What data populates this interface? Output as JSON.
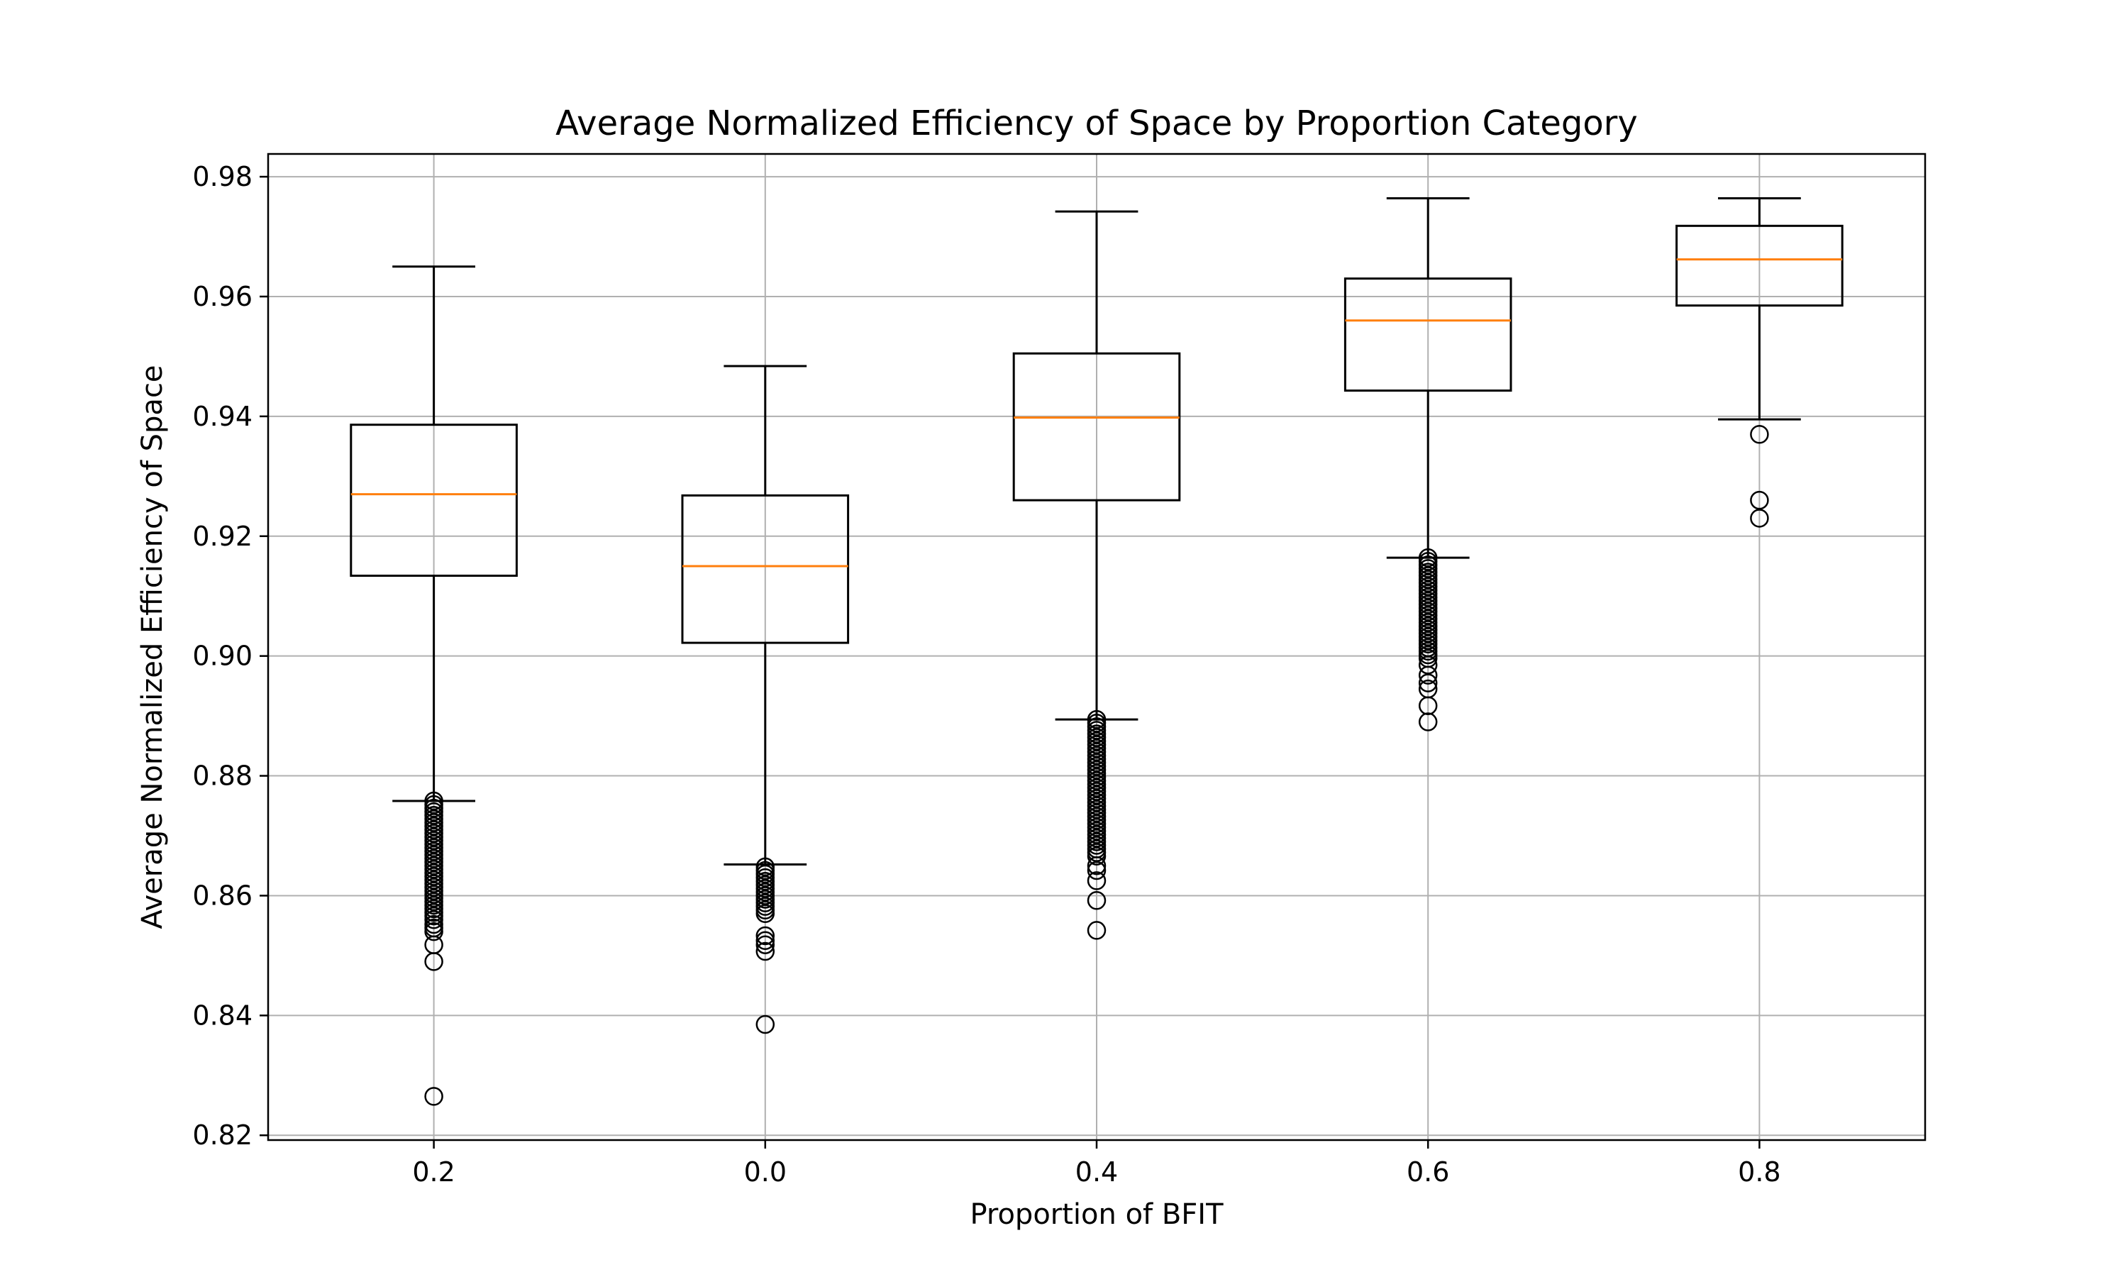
{
  "chart_data": {
    "type": "box",
    "title": "Average Normalized Efficiency of Space by Proportion Category",
    "xlabel": "Proportion of BFIT",
    "ylabel": "Average Normalized Efficiency of Space",
    "ylim": [
      0.8192,
      0.9838
    ],
    "yticks": [
      "0.82",
      "0.84",
      "0.86",
      "0.88",
      "0.90",
      "0.92",
      "0.94",
      "0.96",
      "0.98"
    ],
    "grid": true,
    "colors": {
      "box": "#000000",
      "median": "#ff7f0e",
      "grid": "#b0b0b0"
    },
    "categories": [
      "0.2",
      "0.0",
      "0.4",
      "0.6",
      "0.8"
    ],
    "boxes": [
      {
        "category": "0.2",
        "whisker_low": 0.8758,
        "q1": 0.9134,
        "median": 0.927,
        "q3": 0.9386,
        "whisker_high": 0.965,
        "outliers": [
          0.8758,
          0.8752,
          0.8746,
          0.874,
          0.8734,
          0.8728,
          0.8722,
          0.8716,
          0.871,
          0.8704,
          0.8698,
          0.8692,
          0.8686,
          0.868,
          0.8674,
          0.8668,
          0.8662,
          0.8656,
          0.865,
          0.8644,
          0.8638,
          0.8632,
          0.8626,
          0.862,
          0.8614,
          0.8608,
          0.8602,
          0.8596,
          0.859,
          0.8584,
          0.8578,
          0.8572,
          0.8566,
          0.856,
          0.8552,
          0.8546,
          0.854,
          0.8518,
          0.849,
          0.8265
        ]
      },
      {
        "category": "0.0",
        "whisker_low": 0.8652,
        "q1": 0.9022,
        "median": 0.915,
        "q3": 0.9268,
        "whisker_high": 0.9484,
        "outliers": [
          0.8648,
          0.8642,
          0.8636,
          0.863,
          0.8624,
          0.8618,
          0.8612,
          0.8606,
          0.86,
          0.8594,
          0.8588,
          0.8582,
          0.8576,
          0.857,
          0.8533,
          0.8525,
          0.8518,
          0.8507,
          0.8385
        ]
      },
      {
        "category": "0.4",
        "whisker_low": 0.8894,
        "q1": 0.926,
        "median": 0.9398,
        "q3": 0.9505,
        "whisker_high": 0.9742,
        "outliers": [
          0.8894,
          0.8888,
          0.8882,
          0.8876,
          0.887,
          0.8864,
          0.8858,
          0.8852,
          0.8846,
          0.884,
          0.8834,
          0.8828,
          0.8822,
          0.8816,
          0.881,
          0.8804,
          0.8798,
          0.8792,
          0.8786,
          0.878,
          0.8774,
          0.8768,
          0.8762,
          0.8756,
          0.875,
          0.8744,
          0.8738,
          0.8732,
          0.8726,
          0.872,
          0.8714,
          0.8708,
          0.8702,
          0.8696,
          0.869,
          0.8684,
          0.8678,
          0.8672,
          0.8666,
          0.865,
          0.8642,
          0.8625,
          0.8592,
          0.8542
        ]
      },
      {
        "category": "0.6",
        "whisker_low": 0.9164,
        "q1": 0.9443,
        "median": 0.956,
        "q3": 0.963,
        "whisker_high": 0.9764,
        "outliers": [
          0.9164,
          0.9158,
          0.9152,
          0.9146,
          0.914,
          0.9134,
          0.9128,
          0.9122,
          0.9116,
          0.911,
          0.9104,
          0.9098,
          0.9092,
          0.9086,
          0.908,
          0.9074,
          0.9068,
          0.9062,
          0.9056,
          0.905,
          0.9044,
          0.9038,
          0.9032,
          0.9026,
          0.902,
          0.9014,
          0.9008,
          0.9002,
          0.8996,
          0.8985,
          0.8968,
          0.8955,
          0.8945,
          0.8917,
          0.889
        ]
      },
      {
        "category": "0.8",
        "whisker_low": 0.9395,
        "q1": 0.9585,
        "median": 0.9662,
        "q3": 0.9718,
        "whisker_high": 0.9764,
        "outliers": [
          0.937,
          0.926,
          0.923
        ]
      }
    ]
  }
}
